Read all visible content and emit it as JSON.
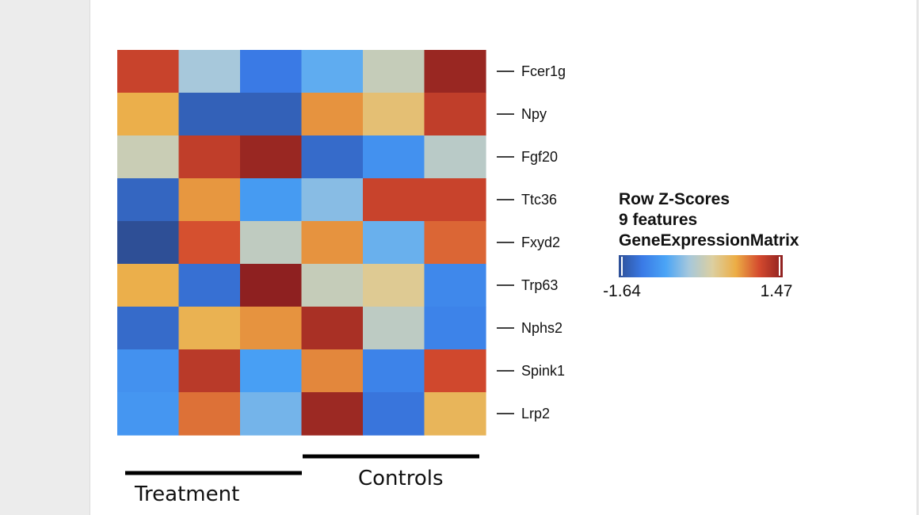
{
  "chart_data": {
    "type": "heatmap",
    "rows": [
      "Fcer1g",
      "Npy",
      "Fgf20",
      "Ttc36",
      "Fxyd2",
      "Trp63",
      "Nphs2",
      "Spink1",
      "Lrp2"
    ],
    "columns": [
      "",
      "",
      "",
      "",
      "",
      ""
    ],
    "values": [
      [
        1.1,
        -0.3,
        -1.2,
        -0.65,
        -0.05,
        1.4
      ],
      [
        0.55,
        -1.45,
        -1.45,
        0.7,
        0.35,
        1.15
      ],
      [
        -0.02,
        1.15,
        1.4,
        -1.35,
        -0.95,
        -0.15
      ],
      [
        -1.4,
        0.68,
        -0.85,
        -0.45,
        1.1,
        1.1
      ],
      [
        -1.64,
        1.0,
        -0.1,
        0.7,
        -0.6,
        0.9
      ],
      [
        0.55,
        -1.3,
        1.47,
        -0.05,
        0.2,
        -1.05
      ],
      [
        -1.35,
        0.52,
        0.7,
        1.3,
        -0.12,
        -1.1
      ],
      [
        -0.95,
        1.2,
        -0.8,
        0.75,
        -1.1,
        1.05
      ],
      [
        -0.9,
        0.85,
        -0.55,
        1.38,
        -1.25,
        0.48
      ]
    ],
    "groups": [
      {
        "name": "Treatment",
        "start": 0,
        "end": 2
      },
      {
        "name": "Controls",
        "start": 3,
        "end": 5
      }
    ],
    "legend": {
      "title_lines": [
        "Row Z-Scores",
        "9 features",
        "GeneExpressionMatrix"
      ],
      "min": -1.64,
      "max": 1.47,
      "min_label": "-1.64",
      "max_label": "1.47",
      "placement": "right"
    },
    "colorscale": [
      "#2e4f96",
      "#3a7ae6",
      "#4aa4f6",
      "#a6c8dc",
      "#dccfa0",
      "#ecad45",
      "#d44a2e",
      "#8e2020"
    ]
  }
}
